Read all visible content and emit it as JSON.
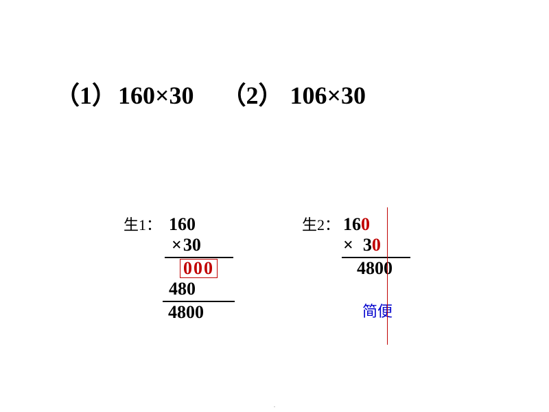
{
  "heading": {
    "item1_label": "（1）",
    "item1_expr": "160×30",
    "item2_label": "（2）",
    "item2_expr": "106×30"
  },
  "student1": {
    "label": "生1：",
    "top_number": "160",
    "times": "×",
    "multiplier": "30",
    "zeros_partial": "000",
    "partial": "480",
    "result": "4800"
  },
  "student2": {
    "label": "生2：",
    "top_prefix": "16",
    "top_redzero": "0",
    "times": "×",
    "mult_prefix": "3",
    "mult_redzero": "0",
    "result": "4800",
    "note": "简便"
  },
  "colors": {
    "red": "#c00000",
    "blue": "#0000cd",
    "black": "#000000",
    "bg": "#ffffff"
  }
}
